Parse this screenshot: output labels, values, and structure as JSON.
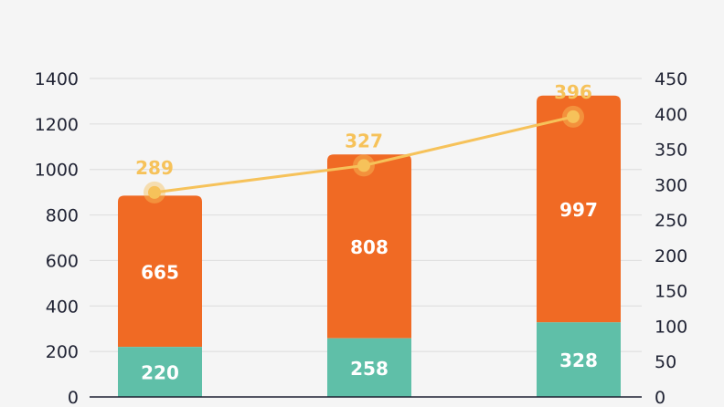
{
  "chart_data": {
    "type": "bar",
    "stacked": true,
    "categories": [
      "",
      "",
      ""
    ],
    "series": [
      {
        "values": [
          220,
          258,
          328
        ],
        "color": "#5fbfa8"
      },
      {
        "values": [
          665,
          808,
          997
        ],
        "color": "#f06a24"
      }
    ],
    "line_series": {
      "values": [
        289,
        327,
        396
      ],
      "color": "#f6c25a",
      "axis": "right"
    },
    "y_left": {
      "ylim": [
        0,
        1400
      ],
      "ticks": [
        0,
        200,
        400,
        600,
        800,
        1000,
        1200,
        1400
      ]
    },
    "y_right": {
      "ylim": [
        0,
        450
      ],
      "ticks": [
        0,
        50,
        100,
        150,
        200,
        250,
        300,
        350,
        400,
        450
      ]
    },
    "grid": true,
    "legend": "none",
    "title": "",
    "xlabel": "",
    "ylabel": ""
  }
}
